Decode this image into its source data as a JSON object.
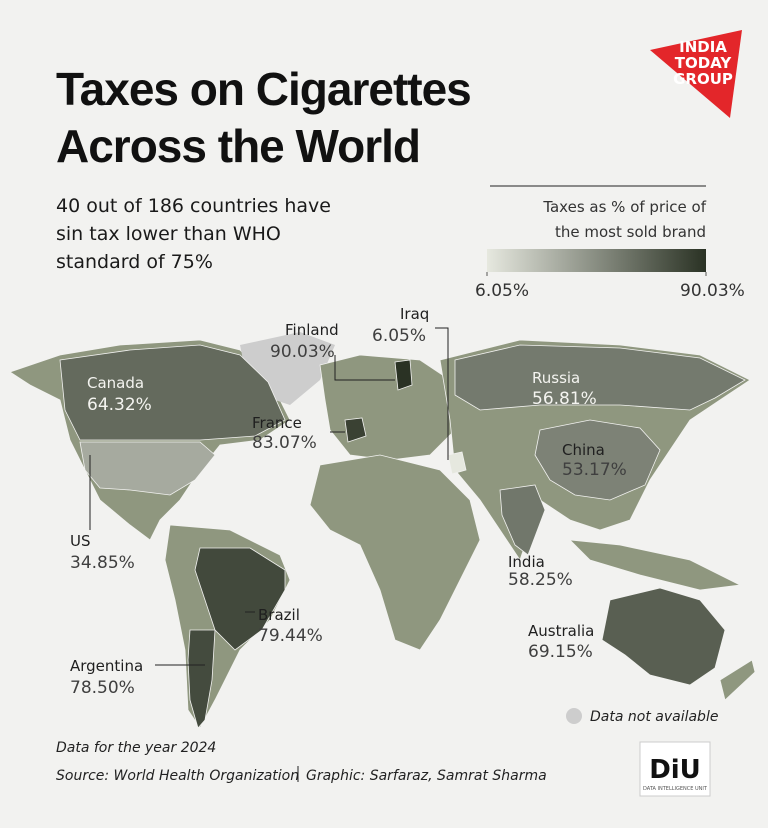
{
  "chart_data": {
    "type": "map",
    "title_lines": [
      "Taxes on Cigarettes",
      "Across the World"
    ],
    "subtitle_lines": [
      "40 out of 186 countries have",
      "sin tax lower than WHO",
      "standard of 75%"
    ],
    "legend_title_lines": [
      "Taxes as % of price of",
      "the most sold brand"
    ],
    "colorbar_lim": [
      6.05,
      90.03
    ],
    "colorbar_ticks": [
      {
        "value": 6.05,
        "label": "6.05%"
      },
      {
        "value": 90.03,
        "label": "90.03%"
      }
    ],
    "colors": [
      "#e6e8df",
      "#2a3224"
    ],
    "regions": [
      "Canada",
      "US",
      "Argentina",
      "Brazil",
      "Finland",
      "Iraq",
      "France",
      "Russia",
      "China",
      "India",
      "Australia"
    ],
    "values": [
      64.32,
      34.85,
      78.5,
      79.44,
      90.03,
      6.05,
      83.07,
      56.81,
      53.17,
      58.25,
      69.15
    ],
    "value_labels": [
      "64.32%",
      "34.85%",
      "78.50%",
      "79.44%",
      "90.03%",
      "6.05%",
      "83.07%",
      "56.81%",
      "53.17%",
      "58.25%",
      "69.15%"
    ],
    "missing_label": "Data not available",
    "notes": [
      "Data for the year 2024",
      "Source: World Health Organization",
      "Graphic: Sarfaraz, Samrat Sharma"
    ],
    "brand_lines": [
      "INDIA",
      "TODAY",
      "GROUP"
    ],
    "unit_logo": "DiU",
    "unit_name": "DATA INTELLIGENCE UNIT"
  }
}
